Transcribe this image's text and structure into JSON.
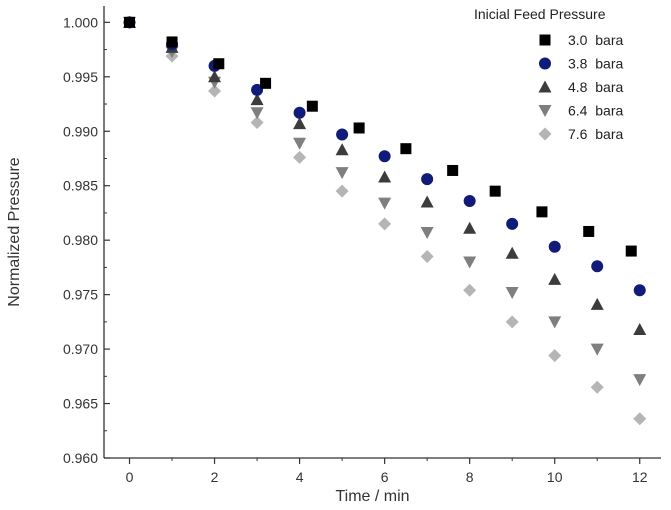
{
  "chart_data": {
    "type": "scatter",
    "title": "",
    "xlabel": "Time / min",
    "ylabel": "Normalized Pressure",
    "xlim": [
      -0.6,
      12.5
    ],
    "ylim": [
      0.96,
      1.0015
    ],
    "xticks": [
      0,
      2,
      4,
      6,
      8,
      10,
      12
    ],
    "yticks": [
      0.96,
      0.965,
      0.97,
      0.975,
      0.98,
      0.985,
      0.99,
      0.995,
      1.0
    ],
    "ytick_labels": [
      "0.960",
      "0.965",
      "0.970",
      "0.975",
      "0.980",
      "0.985",
      "0.990",
      "0.995",
      "1.000"
    ],
    "grid": false,
    "legend_title": "Inicial Feed Pressure",
    "legend_position": "top-right",
    "series": [
      {
        "name": "3.0  bara",
        "marker": "square",
        "color": "#000000",
        "x": [
          0,
          1,
          2.1,
          3.2,
          4.3,
          5.4,
          6.5,
          7.6,
          8.6,
          9.7,
          10.8,
          11.8
        ],
        "y": [
          1.0,
          0.9982,
          0.9962,
          0.9944,
          0.9923,
          0.9903,
          0.9884,
          0.9864,
          0.9845,
          0.9826,
          0.9808,
          0.979
        ]
      },
      {
        "name": "3.8  bara",
        "marker": "circle",
        "color": "#111b7a",
        "x": [
          0,
          1,
          2,
          3,
          4,
          5,
          6,
          7,
          8,
          9,
          10,
          11,
          12
        ],
        "y": [
          1.0,
          0.998,
          0.996,
          0.9938,
          0.9917,
          0.9897,
          0.9877,
          0.9856,
          0.9836,
          0.9815,
          0.9794,
          0.9776,
          0.9754
        ]
      },
      {
        "name": "4.8  bara",
        "marker": "triangle-up",
        "color": "#3c3c3c",
        "x": [
          0,
          1,
          2,
          3,
          4,
          5,
          6,
          7,
          8,
          9,
          10,
          11,
          12
        ],
        "y": [
          1.0,
          0.9977,
          0.995,
          0.9929,
          0.9907,
          0.9883,
          0.9858,
          0.9835,
          0.9811,
          0.9788,
          0.9764,
          0.9741,
          0.9718
        ]
      },
      {
        "name": "6.4  bara",
        "marker": "triangle-down",
        "color": "#7f7f7f",
        "x": [
          0,
          1,
          2,
          3,
          4,
          5,
          6,
          7,
          8,
          9,
          10,
          11,
          12
        ],
        "y": [
          1.0,
          0.9973,
          0.9945,
          0.9917,
          0.9889,
          0.9862,
          0.9834,
          0.9807,
          0.978,
          0.9752,
          0.9725,
          0.97,
          0.9672
        ]
      },
      {
        "name": "7.6  bara",
        "marker": "diamond",
        "color": "#b5b5b5",
        "x": [
          0,
          1,
          2,
          3,
          4,
          5,
          6,
          7,
          8,
          9,
          10,
          11,
          12
        ],
        "y": [
          1.0,
          0.9969,
          0.9937,
          0.9908,
          0.9876,
          0.9845,
          0.9815,
          0.9785,
          0.9754,
          0.9725,
          0.9694,
          0.9665,
          0.9636
        ]
      }
    ]
  }
}
